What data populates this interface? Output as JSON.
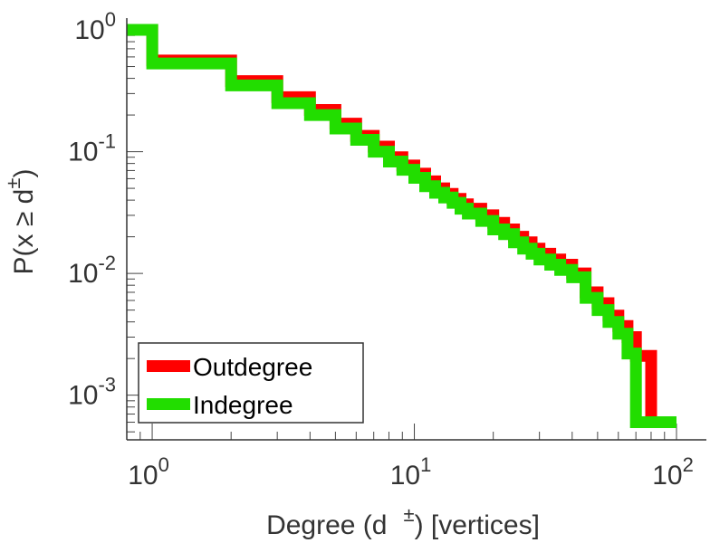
{
  "chart_data": {
    "type": "line",
    "title": "",
    "xlabel": {
      "prefix": "Degree (d",
      "superscript": "±",
      "suffix": ") [vertices]"
    },
    "ylabel": {
      "prefix": "P(x ≥ d",
      "superscript": "±",
      "suffix": ")"
    },
    "xscale": "log",
    "yscale": "log",
    "xlim": [
      0.8,
      130
    ],
    "ylim": [
      0.00043,
      1.25
    ],
    "grid": false,
    "legend_position": "bottom-left",
    "x_ticks": [
      {
        "value": 1,
        "base": "10",
        "exp": "0"
      },
      {
        "value": 10,
        "base": "10",
        "exp": "1"
      },
      {
        "value": 100,
        "base": "10",
        "exp": "2"
      }
    ],
    "y_ticks": [
      {
        "value": 1,
        "base": "10",
        "exp": "0"
      },
      {
        "value": 0.1,
        "base": "10",
        "exp": "-1"
      },
      {
        "value": 0.01,
        "base": "10",
        "exp": "-2"
      },
      {
        "value": 0.001,
        "base": "10",
        "exp": "-3"
      }
    ],
    "series": [
      {
        "name": "Outdegree",
        "color": "#ff0000",
        "x": [
          0.8,
          1,
          2,
          3,
          4,
          5,
          6,
          7,
          8,
          9,
          10,
          11,
          12,
          13,
          14,
          15,
          16,
          18,
          20,
          22,
          24,
          26,
          28,
          30,
          33,
          36,
          40,
          45,
          50,
          55,
          60,
          65,
          70,
          80,
          100
        ],
        "y": [
          1.0,
          0.56,
          0.38,
          0.28,
          0.22,
          0.17,
          0.135,
          0.11,
          0.09,
          0.077,
          0.066,
          0.057,
          0.05,
          0.045,
          0.041,
          0.037,
          0.034,
          0.03,
          0.026,
          0.023,
          0.02,
          0.018,
          0.016,
          0.0145,
          0.013,
          0.0118,
          0.01,
          0.007,
          0.0057,
          0.0045,
          0.0037,
          0.003,
          0.0021,
          0.0006,
          0.0006
        ]
      },
      {
        "name": "Indegree",
        "color": "#22dd00",
        "x": [
          0.8,
          1,
          2,
          3,
          4,
          5,
          6,
          7,
          8,
          9,
          10,
          11,
          12,
          13,
          14,
          15,
          16,
          18,
          20,
          22,
          24,
          26,
          28,
          30,
          33,
          36,
          40,
          45,
          50,
          55,
          60,
          65,
          70,
          80,
          100
        ],
        "y": [
          1.0,
          0.53,
          0.35,
          0.25,
          0.2,
          0.155,
          0.125,
          0.1,
          0.083,
          0.071,
          0.061,
          0.052,
          0.046,
          0.042,
          0.038,
          0.034,
          0.031,
          0.027,
          0.023,
          0.021,
          0.018,
          0.016,
          0.0145,
          0.013,
          0.0118,
          0.0107,
          0.0093,
          0.0063,
          0.005,
          0.004,
          0.0032,
          0.0022,
          0.0006,
          0.0006,
          0.0006
        ]
      }
    ]
  }
}
